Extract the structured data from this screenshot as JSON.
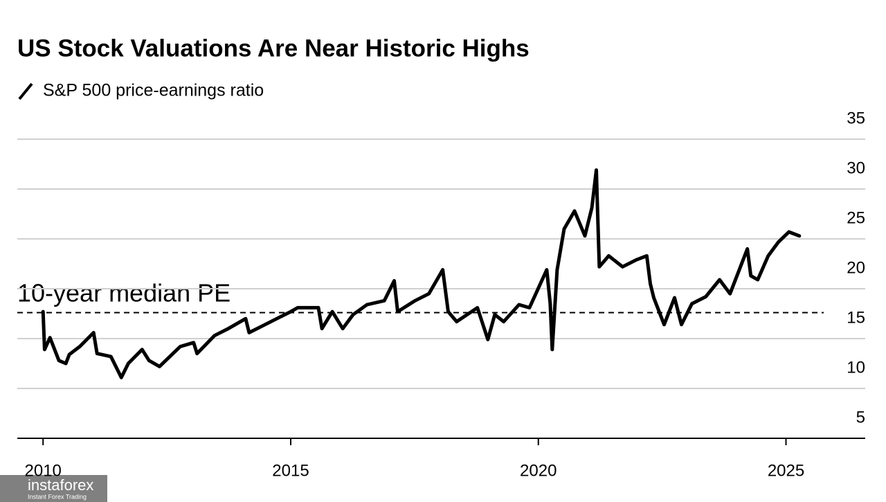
{
  "chart_data": {
    "type": "line",
    "title": "US Stock Valuations Are Near Historic Highs",
    "annotation": "10-year median PE",
    "median_value": 17.6,
    "x": [
      2010.0,
      2010.03,
      2010.14,
      2010.32,
      2010.46,
      2010.53,
      2010.74,
      2011.02,
      2011.09,
      2011.37,
      2011.58,
      2011.72,
      2012.0,
      2012.14,
      2012.35,
      2012.77,
      2013.04,
      2013.11,
      2013.46,
      2013.74,
      2014.09,
      2014.16,
      2014.44,
      2014.72,
      2015.0,
      2015.14,
      2015.56,
      2015.63,
      2015.84,
      2016.05,
      2016.26,
      2016.54,
      2016.89,
      2017.09,
      2017.16,
      2017.51,
      2017.79,
      2018.07,
      2018.18,
      2018.35,
      2018.77,
      2018.98,
      2019.12,
      2019.3,
      2019.61,
      2019.82,
      2020.17,
      2020.24,
      2020.28,
      2020.38,
      2020.52,
      2020.73,
      2020.94,
      2021.08,
      2021.17,
      2021.23,
      2021.42,
      2021.7,
      2021.98,
      2022.19,
      2022.26,
      2022.33,
      2022.54,
      2022.75,
      2022.89,
      2023.1,
      2023.38,
      2023.66,
      2023.87,
      2024.22,
      2024.29,
      2024.43,
      2024.64,
      2024.85,
      2025.06,
      2025.27
    ],
    "series": [
      {
        "name": "S&P 500 price-earnings ratio",
        "color": "#000000",
        "values": [
          17.7,
          13.9,
          15.1,
          12.8,
          12.5,
          13.4,
          14.2,
          15.6,
          13.5,
          13.2,
          11.1,
          12.5,
          13.9,
          12.8,
          12.2,
          14.2,
          14.6,
          13.5,
          15.3,
          16.0,
          17.0,
          15.6,
          16.3,
          17.0,
          17.7,
          18.1,
          18.1,
          16.0,
          17.7,
          16.0,
          17.4,
          18.4,
          18.8,
          20.8,
          17.7,
          18.8,
          19.5,
          21.9,
          17.7,
          16.7,
          18.1,
          14.9,
          17.4,
          16.7,
          18.4,
          18.1,
          21.9,
          18.5,
          13.9,
          21.9,
          26.0,
          27.8,
          25.3,
          28.1,
          31.9,
          22.2,
          23.3,
          22.2,
          22.9,
          23.3,
          20.5,
          19.1,
          16.4,
          19.1,
          16.4,
          18.5,
          19.2,
          20.9,
          19.5,
          24.0,
          21.3,
          20.9,
          23.3,
          24.7,
          25.7,
          25.3
        ]
      }
    ],
    "xlim": [
      2009.48,
      2026.6
    ],
    "xticks": [
      2010,
      2015,
      2020,
      2025
    ],
    "ylim": [
      5,
      35
    ],
    "yticks": [
      5,
      10,
      15,
      20,
      25,
      30,
      35
    ],
    "grid": true,
    "watermark": "instaforex",
    "watermark_sub": "Instant Forex Trading"
  }
}
